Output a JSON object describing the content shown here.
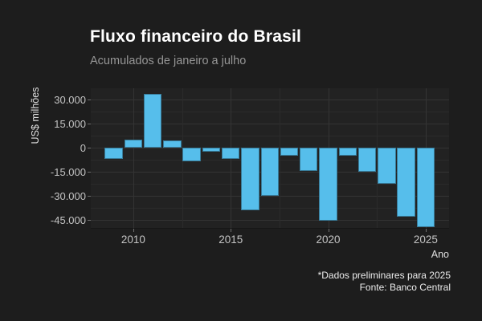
{
  "chart_data": {
    "type": "bar",
    "title": "Fluxo financeiro do Brasil",
    "subtitle": "Acumulados de janeiro a julho",
    "xlabel": "Ano",
    "ylabel": "US$ milhões",
    "categories": [
      2009,
      2010,
      2011,
      2012,
      2013,
      2014,
      2015,
      2016,
      2017,
      2018,
      2019,
      2020,
      2021,
      2022,
      2023,
      2024,
      2025
    ],
    "values": [
      -7000,
      4800,
      33500,
      4300,
      -8600,
      -2700,
      -7200,
      -38800,
      -30000,
      -4900,
      -14400,
      -45400,
      -5100,
      -15200,
      -22700,
      -43000,
      -49500
    ],
    "ylim": [
      -50000,
      37000
    ],
    "xlim": [
      2008.4,
      2026.4
    ],
    "grid": true,
    "legend": false,
    "y_ticks": {
      "values": [
        30000,
        15000,
        0,
        -15000,
        -30000,
        -45000
      ],
      "labels": [
        "30.000",
        "15.000",
        "0",
        "-15.000",
        "-30.000",
        "-45.000"
      ]
    },
    "y_minor": [
      22500,
      7500,
      -7500,
      -22500,
      -37500
    ],
    "x_ticks": {
      "values": [
        2010,
        2015,
        2020,
        2025
      ],
      "labels": [
        "2010",
        "2015",
        "2020",
        "2025"
      ]
    },
    "x_minor": [
      2012.5,
      2017.5,
      2022.5
    ],
    "colors": {
      "bar": "#56beeb",
      "background": "#1d1d1d",
      "panel": "#222222",
      "grid_major": "#343434",
      "grid_minor": "#2b2b2b",
      "tick_text": "#c4c4c4",
      "title_text": "#ffffff",
      "subtitle_text": "#969696",
      "axis_title_text": "#e0e0e0",
      "footer_text": "#ededed"
    }
  },
  "footer": {
    "note": "*Dados preliminares para 2025",
    "source": "Fonte: Banco Central"
  }
}
